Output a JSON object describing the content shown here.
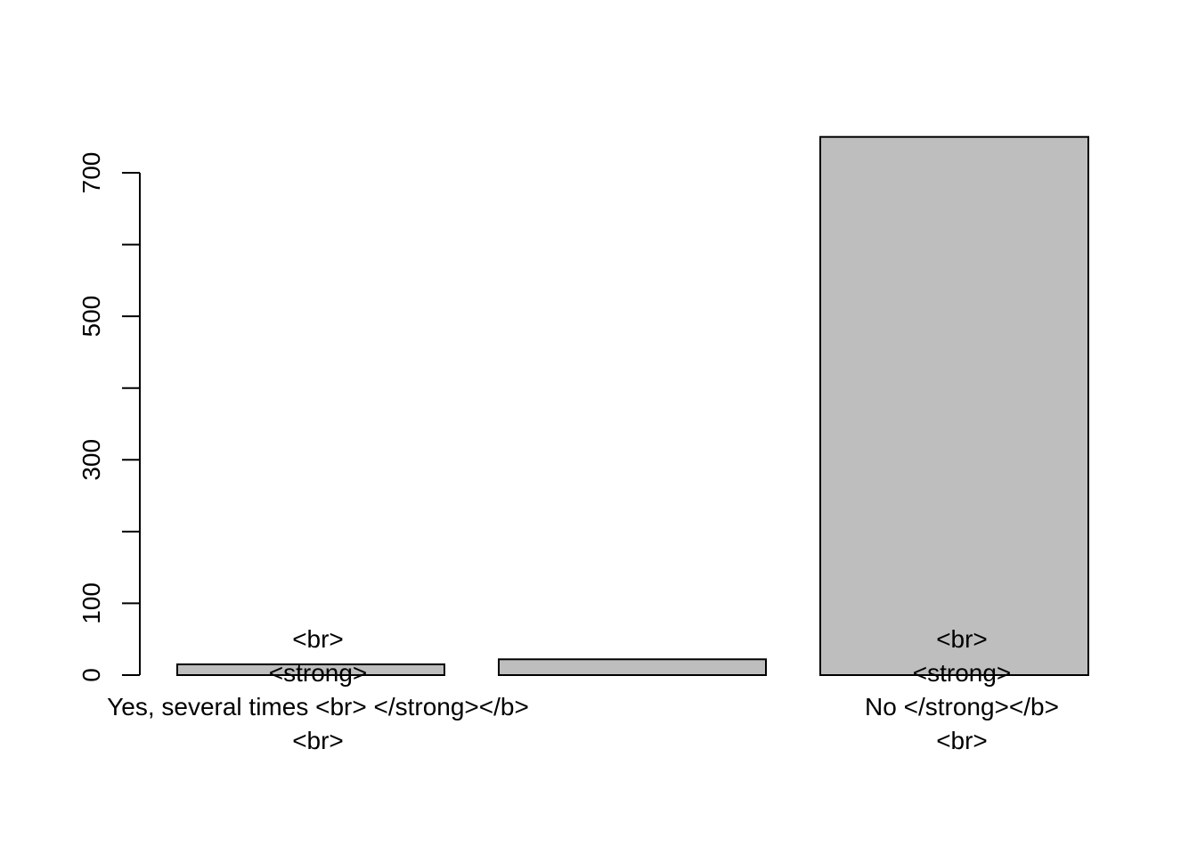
{
  "chart_data": {
    "type": "bar",
    "title": "",
    "xlabel": "",
    "ylabel": "",
    "ylim": [
      0,
      750
    ],
    "y_ticks": [
      0,
      100,
      200,
      300,
      400,
      500,
      600,
      700
    ],
    "y_tick_labels": [
      "0",
      "100",
      "",
      "300",
      "",
      "500",
      "",
      "700"
    ],
    "grid": false,
    "bar_color": "#bebebe",
    "categories": [
      {
        "value": 15,
        "label_lines": [
          "<br>",
          "<strong>",
          "Yes, several times <br> </strong></b>",
          "<br>"
        ]
      },
      {
        "value": 22,
        "label_lines": []
      },
      {
        "value": 750,
        "label_lines": [
          "<br>",
          "<strong>",
          "No  </strong></b>",
          "<br>"
        ]
      }
    ]
  }
}
